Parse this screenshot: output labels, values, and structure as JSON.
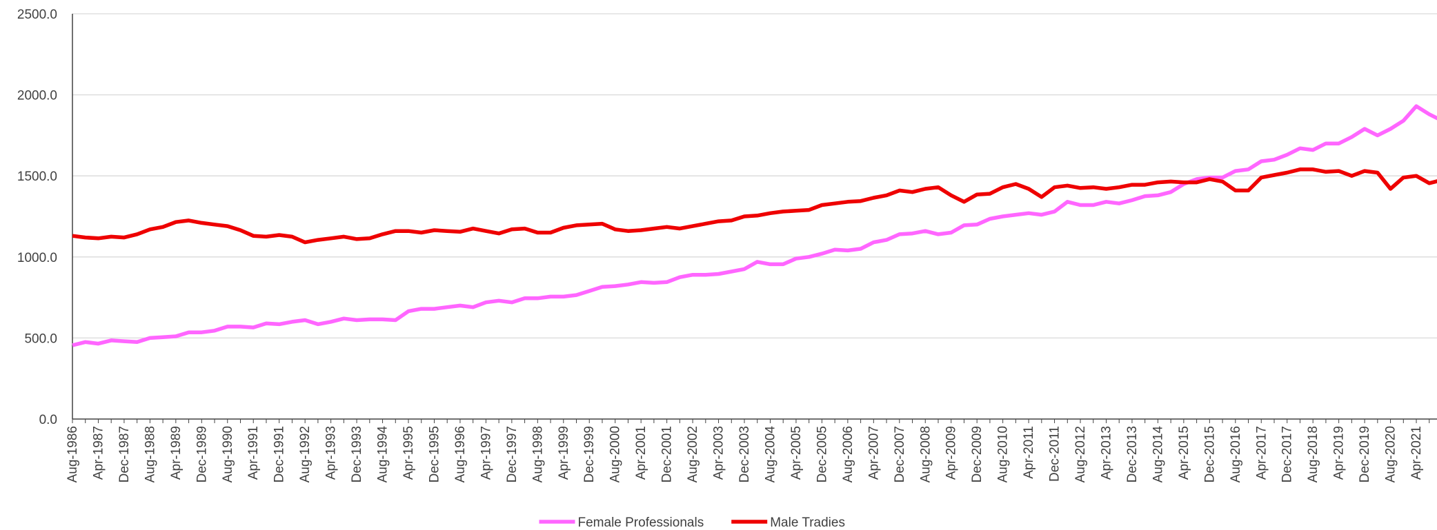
{
  "chart_data": {
    "type": "line",
    "categories": [
      "Aug-1986",
      null,
      "Apr-1987",
      null,
      "Dec-1987",
      null,
      "Aug-1988",
      null,
      "Apr-1989",
      null,
      "Dec-1989",
      null,
      "Aug-1990",
      null,
      "Apr-1991",
      null,
      "Dec-1991",
      null,
      "Aug-1992",
      null,
      "Apr-1993",
      null,
      "Dec-1993",
      null,
      "Aug-1994",
      null,
      "Apr-1995",
      null,
      "Dec-1995",
      null,
      "Aug-1996",
      null,
      "Apr-1997",
      null,
      "Dec-1997",
      null,
      "Aug-1998",
      null,
      "Apr-1999",
      null,
      "Dec-1999",
      null,
      "Aug-2000",
      null,
      "Apr-2001",
      null,
      "Dec-2001",
      null,
      "Aug-2002",
      null,
      "Apr-2003",
      null,
      "Dec-2003",
      null,
      "Aug-2004",
      null,
      "Apr-2005",
      null,
      "Dec-2005",
      null,
      "Aug-2006",
      null,
      "Apr-2007",
      null,
      "Dec-2007",
      null,
      "Aug-2008",
      null,
      "Apr-2009",
      null,
      "Dec-2009",
      null,
      "Aug-2010",
      null,
      "Apr-2011",
      null,
      "Dec-2011",
      null,
      "Aug-2012",
      null,
      "Apr-2013",
      null,
      "Dec-2013",
      null,
      "Aug-2014",
      null,
      "Apr-2015",
      null,
      "Dec-2015",
      null,
      "Aug-2016",
      null,
      "Apr-2017",
      null,
      "Dec-2017",
      null,
      "Aug-2018",
      null,
      "Apr-2019",
      null,
      "Dec-2019",
      null,
      "Aug-2020",
      null,
      "Apr-2021",
      null,
      null
    ],
    "series": [
      {
        "name": "Female Professionals",
        "color": "#ff66ff",
        "values": [
          455,
          475,
          465,
          485,
          480,
          475,
          500,
          505,
          510,
          535,
          535,
          545,
          570,
          570,
          565,
          590,
          585,
          600,
          610,
          585,
          600,
          620,
          610,
          615,
          615,
          610,
          665,
          680,
          680,
          690,
          700,
          690,
          720,
          730,
          720,
          745,
          745,
          755,
          755,
          765,
          790,
          815,
          820,
          830,
          845,
          840,
          845,
          875,
          890,
          890,
          895,
          910,
          925,
          970,
          955,
          955,
          990,
          1000,
          1020,
          1045,
          1040,
          1050,
          1090,
          1105,
          1140,
          1145,
          1160,
          1140,
          1150,
          1195,
          1200,
          1235,
          1250,
          1260,
          1270,
          1260,
          1280,
          1340,
          1320,
          1320,
          1340,
          1330,
          1350,
          1375,
          1380,
          1400,
          1450,
          1480,
          1490,
          1490,
          1530,
          1540,
          1590,
          1600,
          1630,
          1670,
          1660,
          1700,
          1700,
          1740,
          1790,
          1750,
          1790,
          1840,
          1930,
          1880,
          1840
        ]
      },
      {
        "name": "Male Tradies",
        "color": "#ee0000",
        "values": [
          1130,
          1120,
          1115,
          1125,
          1120,
          1140,
          1170,
          1185,
          1215,
          1225,
          1210,
          1200,
          1190,
          1165,
          1130,
          1125,
          1135,
          1125,
          1090,
          1105,
          1115,
          1125,
          1110,
          1115,
          1140,
          1160,
          1160,
          1150,
          1165,
          1160,
          1155,
          1175,
          1160,
          1145,
          1170,
          1175,
          1150,
          1150,
          1180,
          1195,
          1200,
          1205,
          1170,
          1160,
          1165,
          1175,
          1185,
          1175,
          1190,
          1205,
          1220,
          1225,
          1250,
          1255,
          1270,
          1280,
          1285,
          1290,
          1320,
          1330,
          1340,
          1345,
          1365,
          1380,
          1410,
          1400,
          1420,
          1430,
          1380,
          1340,
          1385,
          1390,
          1430,
          1450,
          1420,
          1370,
          1430,
          1440,
          1425,
          1430,
          1420,
          1430,
          1445,
          1445,
          1460,
          1465,
          1460,
          1460,
          1480,
          1465,
          1410,
          1410,
          1490,
          1505,
          1520,
          1540,
          1540,
          1525,
          1530,
          1500,
          1530,
          1520,
          1420,
          1490,
          1500,
          1455,
          1475
        ]
      }
    ],
    "ylim": [
      0,
      2500
    ],
    "yticks": [
      {
        "value": 0,
        "label": "0.0"
      },
      {
        "value": 500,
        "label": "500.0"
      },
      {
        "value": 1000,
        "label": "1000.0"
      },
      {
        "value": 1500,
        "label": "1500.0"
      },
      {
        "value": 2000,
        "label": "2000.0"
      },
      {
        "value": 2500,
        "label": "2500.0"
      }
    ],
    "grid": true,
    "legend": "bottom"
  }
}
